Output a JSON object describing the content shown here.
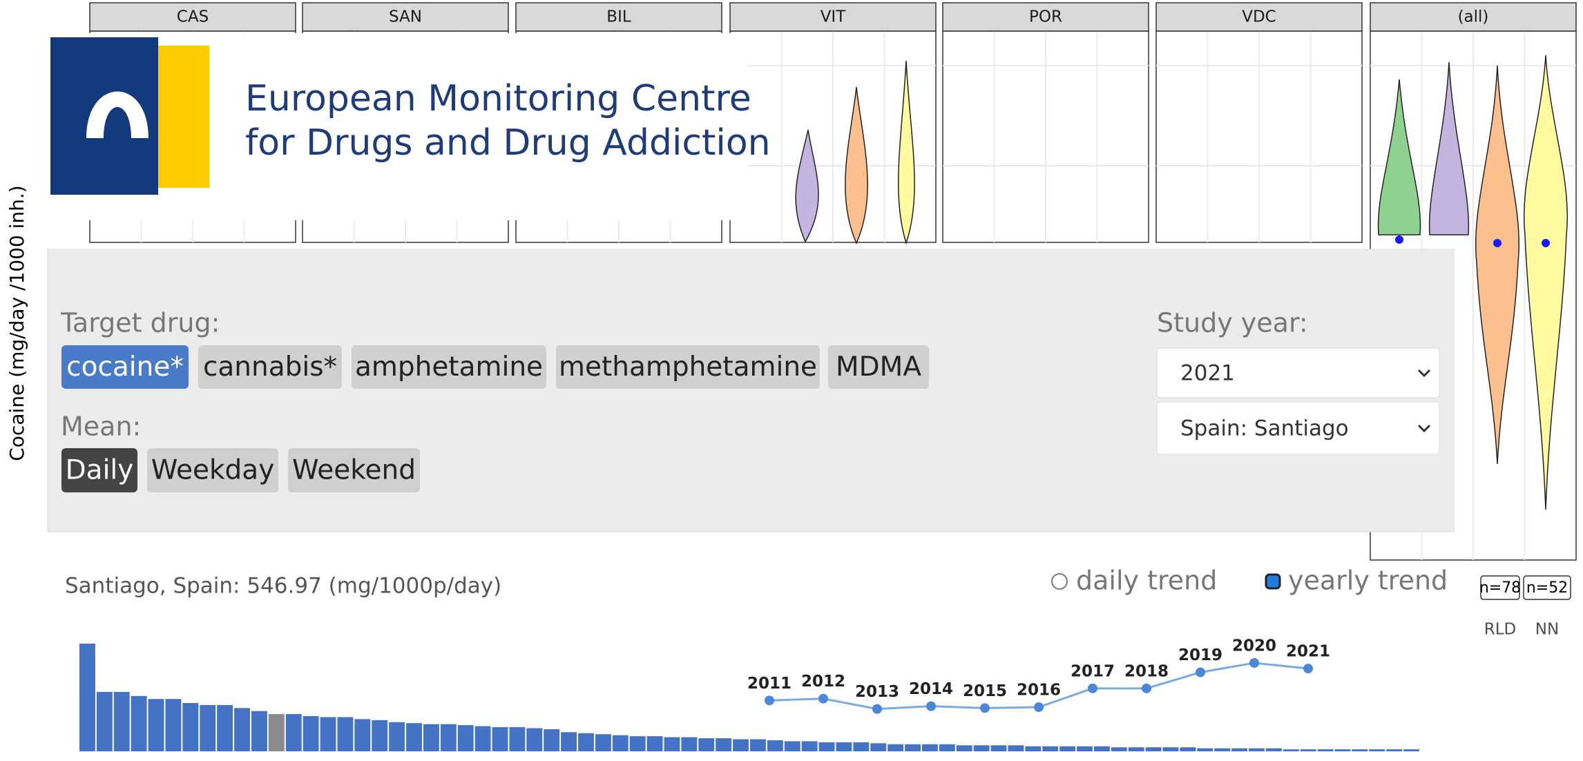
{
  "facets": [
    "CAS",
    "SAN",
    "BIL",
    "VIT",
    "POR",
    "VDC",
    "(all)"
  ],
  "y_axis_label": "Cocaine (mg/day /1000 inh.)",
  "logo": {
    "line1": "European Monitoring Centre",
    "line2": "for Drugs and Drug Addiction"
  },
  "right_axis": {
    "counts": [
      "n=78",
      "n=52"
    ],
    "labels": [
      "RLD",
      "NN"
    ]
  },
  "controls": {
    "target_label": "Target drug:",
    "drugs": [
      "cocaine*",
      "cannabis*",
      "amphetamine",
      "methamphetamine",
      "MDMA"
    ],
    "drug_selected": 0,
    "mean_label": "Mean:",
    "means": [
      "Daily",
      "Weekday",
      "Weekend"
    ],
    "mean_selected": 0,
    "year_label": "Study year:",
    "year": "2021",
    "city": "Spain: Santiago"
  },
  "trend": {
    "title": "Santiago, Spain: 546.97 (mg/1000p/day)",
    "options": [
      "daily trend",
      "yearly trend"
    ],
    "option_selected": 1,
    "bars": [
      107,
      59,
      59,
      55,
      52,
      52,
      48,
      46,
      46,
      43,
      40,
      37,
      37,
      35,
      34,
      34,
      32,
      31,
      29,
      28,
      27,
      27,
      26,
      25,
      24,
      24,
      23,
      22,
      19,
      18,
      17,
      16,
      15,
      15,
      14,
      14,
      13,
      13,
      12,
      12,
      11,
      10,
      10,
      9,
      9,
      9,
      8,
      7,
      7,
      7,
      7,
      6,
      6,
      6,
      6,
      5,
      5,
      5,
      5,
      5,
      4,
      4,
      4,
      4,
      4,
      3,
      3,
      3,
      3,
      3,
      2,
      2,
      2,
      2,
      2,
      2,
      2,
      2
    ],
    "bar_color": "#4472c4",
    "highlight_index": 11,
    "highlight_color": "#8c8c8c",
    "years": [
      "2011",
      "2012",
      "2013",
      "2014",
      "2015",
      "2016",
      "2017",
      "2018",
      "2019",
      "2020",
      "2021"
    ],
    "values": [
      336,
      348,
      280,
      298,
      286,
      292,
      416,
      416,
      522,
      584,
      547
    ],
    "line_color": "#7aaae0"
  }
}
